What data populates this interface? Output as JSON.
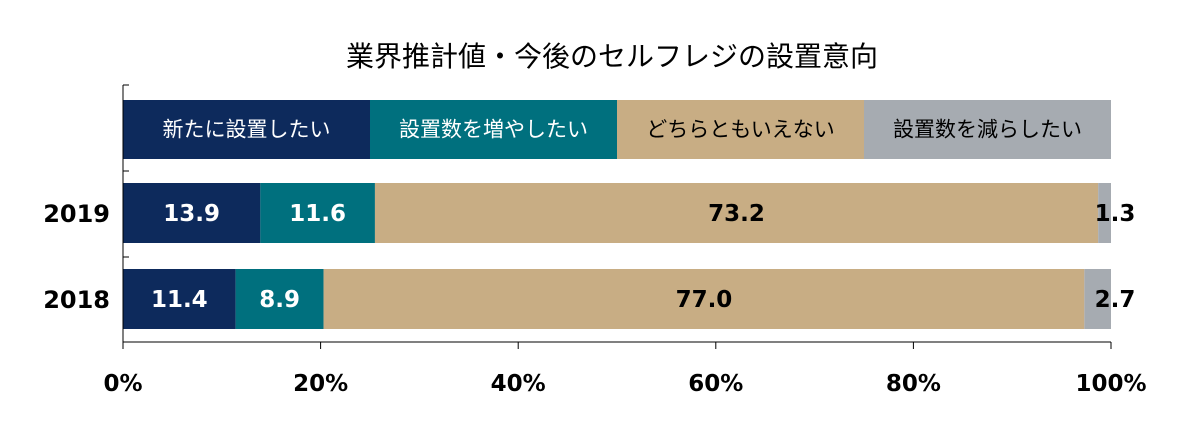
{
  "chart_data": {
    "type": "bar",
    "orientation": "horizontal",
    "stacked": "percent",
    "title": "業界推計値・今後のセルフレジの設置意向",
    "categories": [
      "2019",
      "2018"
    ],
    "legend_position": "top (inside plot, as stacked header bar)",
    "series": [
      {
        "name": "新たに設置したい",
        "color": "#0d2a5c",
        "label_color": "#ffffff",
        "values": [
          13.9,
          11.4
        ]
      },
      {
        "name": "設置数を増やしたい",
        "color": "#00707e",
        "label_color": "#ffffff",
        "values": [
          11.6,
          8.9
        ]
      },
      {
        "name": "どちらともいえない",
        "color": "#c8ad84",
        "label_color": "#000000",
        "values": [
          73.2,
          77.0
        ]
      },
      {
        "name": "設置数を減らしたい",
        "color": "#a6abb1",
        "label_color": "#000000",
        "values": [
          1.3,
          2.7
        ]
      }
    ],
    "value_labels": [
      [
        "13.9",
        "11.6",
        "73.2",
        "1.3"
      ],
      [
        "11.4",
        "8.9",
        "77.0",
        "2.7"
      ]
    ],
    "xlim": [
      0,
      100
    ],
    "x_ticks": [
      "0%",
      "20%",
      "40%",
      "60%",
      "80%",
      "100%"
    ],
    "x_tick_values": [
      0,
      20,
      40,
      60,
      80,
      100
    ],
    "grid": false
  }
}
